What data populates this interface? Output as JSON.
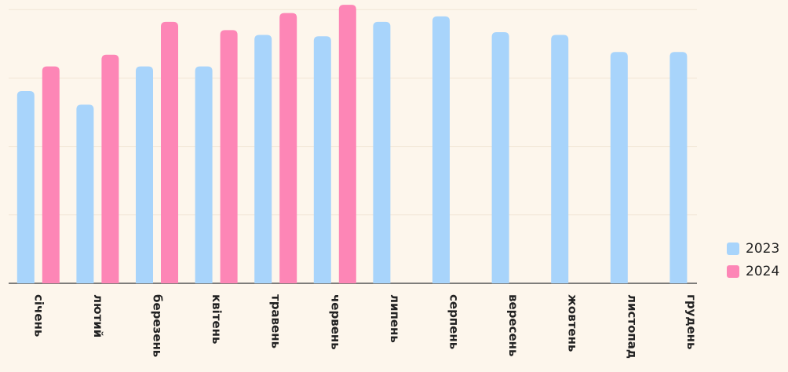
{
  "chart_data": {
    "type": "bar",
    "categories": [
      "січень",
      "лютий",
      "березень",
      "квітень",
      "травень",
      "червень",
      "липень",
      "серпень",
      "вересень",
      "жовтень",
      "листопад",
      "грудень"
    ],
    "series": [
      {
        "name": "2023",
        "color": "#a8d4fb",
        "values": [
          2.81,
          2.61,
          3.17,
          3.17,
          3.63,
          3.61,
          3.82,
          3.9,
          3.67,
          3.63,
          3.38,
          3.38
        ]
      },
      {
        "name": "2024",
        "color": "#fd86b6",
        "values": [
          3.17,
          3.34,
          3.82,
          3.7,
          3.95,
          4.07,
          null,
          null,
          null,
          null,
          null,
          null
        ]
      }
    ],
    "ylim": [
      0,
      4.14
    ],
    "yticks": [
      0,
      1,
      2,
      3,
      4
    ],
    "grid": true,
    "legend": "right"
  }
}
